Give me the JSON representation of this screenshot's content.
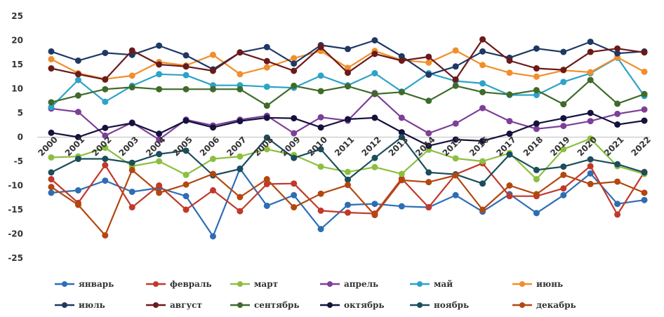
{
  "chart_data": {
    "type": "line",
    "x": [
      "2000",
      "2001",
      "2002",
      "2003",
      "2004",
      "2005",
      "2006",
      "2007",
      "2008",
      "2009",
      "2010",
      "2011",
      "2012",
      "2013",
      "2014",
      "2015",
      "2016",
      "2017",
      "2018",
      "2019",
      "2020",
      "2021",
      "2022"
    ],
    "ylim": [
      -25,
      25
    ],
    "yticks": [
      25,
      20,
      15,
      10,
      5,
      0,
      -5,
      -10,
      -15,
      -20,
      -25
    ],
    "grid": false,
    "legend_position": "bottom",
    "series": [
      {
        "name": "январь",
        "color": "#2e6db4",
        "values": [
          -11.5,
          -11,
          -9,
          -11.3,
          -10.5,
          -12.2,
          -20.5,
          -6.5,
          -14.2,
          -12,
          -19,
          -14,
          -13.8,
          -14.3,
          -14.5,
          -12,
          -15.4,
          -11.8,
          -15.7,
          -12,
          -7.5,
          -13.8,
          -13
        ]
      },
      {
        "name": "февраль",
        "color": "#c0392b",
        "values": [
          -8.7,
          -13.6,
          -5.8,
          -14.5,
          -10,
          -15,
          -11,
          -15.3,
          -9.7,
          -9.6,
          -15.2,
          -15.6,
          -15.8,
          -8.6,
          -14.5,
          -7.7,
          -5.4,
          -12.2,
          -12.2,
          -10.6,
          -6,
          -16,
          -7.2
        ]
      },
      {
        "name": "март",
        "color": "#8cbf3f",
        "values": [
          -4.2,
          -4,
          -2.2,
          -6,
          -5,
          -7.8,
          -4.5,
          -4,
          -2.5,
          -3.7,
          -6.1,
          -7.2,
          -6.2,
          -7.6,
          -2.6,
          -4.4,
          -5,
          -3.3,
          -8.7,
          -2.5,
          -0.3,
          -6,
          -7.6
        ]
      },
      {
        "name": "апрель",
        "color": "#7d3f98",
        "values": [
          5.9,
          5.2,
          0.3,
          3,
          -0.5,
          3.6,
          2.4,
          3.6,
          4.4,
          0.8,
          4.1,
          3.4,
          9.1,
          4,
          0.8,
          2.8,
          6,
          3.3,
          1.7,
          2.3,
          3.3,
          4.8,
          5.7
        ]
      },
      {
        "name": "май",
        "color": "#2ca3c7",
        "values": [
          6.2,
          11.8,
          7.3,
          10.6,
          13,
          12.8,
          10.7,
          10.7,
          10.4,
          10.2,
          12.7,
          10.7,
          13.2,
          9.4,
          13.2,
          11.6,
          11.1,
          8.7,
          8.7,
          11.4,
          13.2,
          16.4,
          8.5
        ]
      },
      {
        "name": "июнь",
        "color": "#f28e2b",
        "values": [
          16.1,
          13.2,
          12,
          12.7,
          15.5,
          14.8,
          17,
          13,
          14.4,
          16.3,
          17.8,
          14.3,
          17.8,
          15.9,
          15.4,
          17.9,
          14.9,
          13.3,
          12.5,
          13.8,
          13.4,
          16.5,
          13.5
        ]
      },
      {
        "name": "июль",
        "color": "#1f3864",
        "values": [
          17.7,
          15.8,
          17.4,
          17,
          18.9,
          16.9,
          14,
          17.5,
          18.6,
          15.2,
          19,
          18.2,
          20,
          16.7,
          12.9,
          14.6,
          17.7,
          16.4,
          18.3,
          17.6,
          19.7,
          17.3,
          17.7
        ]
      },
      {
        "name": "август",
        "color": "#6b1a1a",
        "values": [
          14.2,
          13,
          11.9,
          17.9,
          15,
          14.6,
          13.7,
          17.5,
          15.7,
          13.7,
          18.6,
          13.3,
          17.2,
          15.8,
          16.6,
          11.9,
          20.2,
          15.8,
          14.2,
          13.9,
          17.6,
          18.3,
          17.5
        ]
      },
      {
        "name": "сентябрь",
        "color": "#3f6b2a",
        "values": [
          7.2,
          8.6,
          9.9,
          10.3,
          9.9,
          9.9,
          9.9,
          9.9,
          6.5,
          10.6,
          9.5,
          10.5,
          8.9,
          9.3,
          7.5,
          10.6,
          9.3,
          8.8,
          9.7,
          6.8,
          11.8,
          6.9,
          8.9
        ]
      },
      {
        "name": "октябрь",
        "color": "#15123d",
        "values": [
          0.9,
          0,
          1.9,
          2.9,
          0.7,
          3.4,
          2,
          3.3,
          4,
          3.9,
          2,
          3.7,
          4,
          1,
          -1.8,
          -0.5,
          -0.8,
          0.7,
          2.8,
          3.9,
          5,
          2.6,
          3.4
        ]
      },
      {
        "name": "ноябрь",
        "color": "#1b4d5c",
        "values": [
          -7.3,
          -4.5,
          -4.5,
          -5.3,
          -3.5,
          -2.8,
          -7.9,
          -6.6,
          -0.1,
          -4.3,
          -2.5,
          -8.8,
          -4.3,
          0,
          -7.3,
          -7.7,
          -9.6,
          -3.6,
          -6.8,
          -6.1,
          -4.6,
          -5.6,
          -7.3
        ]
      },
      {
        "name": "декабрь",
        "color": "#b3470f",
        "values": [
          -10.3,
          -14,
          -20.3,
          -6.8,
          -11.5,
          -9.8,
          -7.6,
          -12.4,
          -8.7,
          -14.5,
          -11.7,
          -9.9,
          -16.1,
          -8.9,
          -9.3,
          -7.9,
          -15,
          -10,
          -11.8,
          -7.8,
          -9.7,
          -9.2,
          -11.5
        ]
      }
    ]
  }
}
